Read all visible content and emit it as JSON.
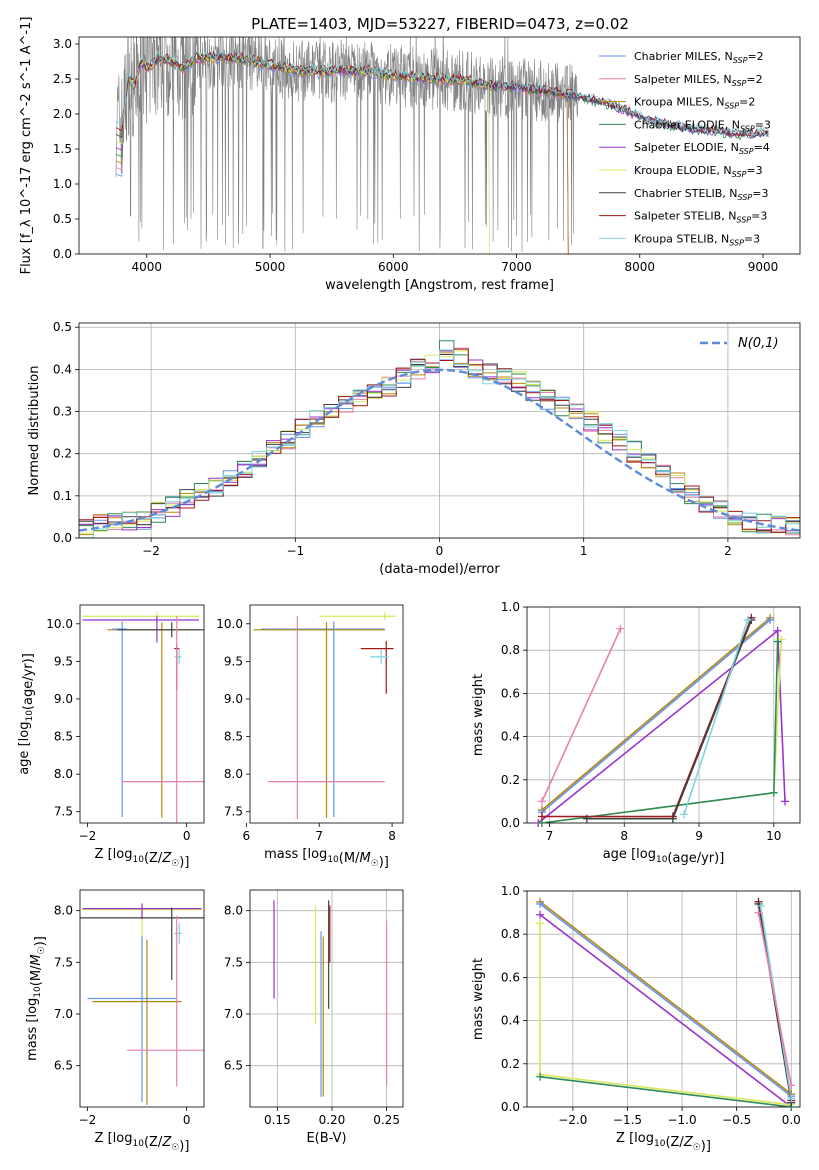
{
  "title": "PLATE=1403, MJD=53227, FIBERID=0473, z=0.02",
  "colors": {
    "chabrier_miles": "#6495ED",
    "salpeter_miles": "#E97FB0",
    "kroupa_miles": "#B8860B",
    "chabrier_elodie": "#2E8B57",
    "salpeter_elodie": "#9932CC",
    "kroupa_elodie": "#D6E85A",
    "chabrier_stelib": "#404040",
    "salpeter_stelib": "#A01818",
    "kroupa_stelib": "#7FD3E0",
    "data": "#808080",
    "fit_orange": "#E07B39",
    "normal_curve": "#5B8BD9"
  },
  "legend": [
    {
      "key": "chabrier_miles",
      "text": "Chabrier MILES, N",
      "sub": "SSP",
      "suffix": "=2"
    },
    {
      "key": "salpeter_miles",
      "text": "Salpeter MILES, N",
      "sub": "SSP",
      "suffix": "=2"
    },
    {
      "key": "kroupa_miles",
      "text": "Kroupa MILES, N",
      "sub": "SSP",
      "suffix": "=2"
    },
    {
      "key": "chabrier_elodie",
      "text": "Chabrier ELODIE, N",
      "sub": "SSP",
      "suffix": "=3"
    },
    {
      "key": "salpeter_elodie",
      "text": "Salpeter ELODIE, N",
      "sub": "SSP",
      "suffix": "=4"
    },
    {
      "key": "kroupa_elodie",
      "text": "Kroupa ELODIE, N",
      "sub": "SSP",
      "suffix": "=3"
    },
    {
      "key": "chabrier_stelib",
      "text": "Chabrier STELIB, N",
      "sub": "SSP",
      "suffix": "=3"
    },
    {
      "key": "salpeter_stelib",
      "text": "Salpeter STELIB, N",
      "sub": "SSP",
      "suffix": "=3"
    },
    {
      "key": "kroupa_stelib",
      "text": "Kroupa STELIB, N",
      "sub": "SSP",
      "suffix": "=3"
    }
  ],
  "chart_data": [
    {
      "id": "spectrum",
      "type": "line",
      "xlabel": "wavelength [Angstrom, rest frame]",
      "ylabel": "Flux [f_λ 10^-17 erg cm^-2 s^-1 A^-1]",
      "xlim": [
        3450,
        9300
      ],
      "ylim": [
        0,
        3.1
      ],
      "xticks": [
        4000,
        5000,
        6000,
        7000,
        8000,
        9000
      ],
      "yticks": [
        0.0,
        0.5,
        1.0,
        1.5,
        2.0,
        2.5,
        3.0
      ],
      "model_continuum": [
        [
          3750,
          1.9
        ],
        [
          3800,
          1.85
        ],
        [
          3850,
          2.5
        ],
        [
          3900,
          2.4
        ],
        [
          3950,
          2.75
        ],
        [
          4000,
          2.65
        ],
        [
          4100,
          2.8
        ],
        [
          4200,
          2.75
        ],
        [
          4300,
          2.65
        ],
        [
          4400,
          2.8
        ],
        [
          4600,
          2.8
        ],
        [
          4800,
          2.78
        ],
        [
          5000,
          2.7
        ],
        [
          5200,
          2.62
        ],
        [
          5400,
          2.6
        ],
        [
          5600,
          2.63
        ],
        [
          5800,
          2.6
        ],
        [
          6000,
          2.55
        ],
        [
          6200,
          2.52
        ],
        [
          6400,
          2.5
        ],
        [
          6600,
          2.47
        ],
        [
          6800,
          2.4
        ],
        [
          7000,
          2.38
        ],
        [
          7200,
          2.33
        ],
        [
          7400,
          2.28
        ],
        [
          7600,
          2.2
        ],
        [
          7800,
          2.1
        ],
        [
          8000,
          1.95
        ],
        [
          8200,
          1.85
        ],
        [
          8400,
          1.78
        ],
        [
          8600,
          1.75
        ],
        [
          8800,
          1.7
        ],
        [
          9000,
          1.72
        ]
      ],
      "series_notes": [
        {
          "key": "kroupa_elodie",
          "x_end": 6780
        },
        {
          "key": "kroupa_miles",
          "x_end": 7420
        },
        {
          "key": "salpeter_miles",
          "x_end": 7420
        },
        {
          "key": "chabrier_miles",
          "x_end": 7420
        }
      ],
      "legend_position": "upper-right"
    },
    {
      "id": "residuals",
      "type": "step",
      "xlabel": "(data-model)/error",
      "ylabel": "Normed distribution",
      "xlim": [
        -2.5,
        2.5
      ],
      "ylim": [
        0,
        0.51
      ],
      "xticks": [
        -2,
        -1,
        0,
        1,
        2
      ],
      "yticks": [
        0.0,
        0.1,
        0.2,
        0.3,
        0.4,
        0.5
      ],
      "bin_width": 0.1,
      "histogram_base": [
        0.025,
        0.035,
        0.04,
        0.04,
        0.045,
        0.06,
        0.075,
        0.09,
        0.11,
        0.12,
        0.14,
        0.165,
        0.19,
        0.215,
        0.235,
        0.26,
        0.28,
        0.3,
        0.315,
        0.33,
        0.345,
        0.36,
        0.38,
        0.4,
        0.41,
        0.445,
        0.43,
        0.4,
        0.39,
        0.38,
        0.37,
        0.35,
        0.33,
        0.31,
        0.295,
        0.275,
        0.25,
        0.23,
        0.205,
        0.18,
        0.16,
        0.13,
        0.1,
        0.085,
        0.07,
        0.055,
        0.04,
        0.035,
        0.03,
        0.025
      ],
      "legend": "N(0,1)",
      "grid": true
    },
    {
      "id": "age_vs_Z",
      "type": "scatter",
      "xlabel": "Z [log10(Z/Z☉)]",
      "ylabel": "age  [log10(age/yr)]",
      "xlim": [
        -2.15,
        0.35
      ],
      "ylim": [
        7.35,
        10.25
      ],
      "xticks": [
        -2,
        0
      ],
      "yticks": [
        7.5,
        8.0,
        8.5,
        9.0,
        9.5,
        10.0
      ],
      "points": [
        {
          "key": "kroupa_elodie",
          "x": -0.6,
          "y": 10.1,
          "xerr": [
            1.5,
            0.85
          ],
          "yerr": [
            0.05,
            0.05
          ]
        },
        {
          "key": "salpeter_elodie",
          "x": -0.6,
          "y": 10.05,
          "xerr": [
            1.5,
            0.85
          ],
          "yerr": [
            0.3,
            0.05
          ]
        },
        {
          "key": "kroupa_miles",
          "x": -0.5,
          "y": 9.92,
          "xerr": [
            1.1,
            0.75
          ],
          "yerr": [
            2.5,
            0.1
          ]
        },
        {
          "key": "chabrier_miles",
          "x": -1.3,
          "y": 9.93,
          "xerr": [
            0.2,
            0.1
          ],
          "yerr": [
            2.5,
            0.1
          ]
        },
        {
          "key": "chabrier_stelib",
          "x": -0.3,
          "y": 9.92,
          "xerr": [
            1.1,
            0.65
          ],
          "yerr": [
            0.1,
            0.1
          ]
        },
        {
          "key": "salpeter_stelib",
          "x": -0.2,
          "y": 9.67,
          "xerr": [
            0.05,
            0.05
          ],
          "yerr": [
            0.55,
            0.05
          ]
        },
        {
          "key": "kroupa_stelib",
          "x": -0.15,
          "y": 9.56,
          "xerr": [
            0.1,
            0.05
          ],
          "yerr": [
            0.1,
            0.1
          ]
        },
        {
          "key": "salpeter_miles",
          "x": -0.2,
          "y": 7.9,
          "xerr": [
            1.1,
            0.8
          ],
          "yerr": [
            1.6,
            2.2
          ]
        }
      ]
    },
    {
      "id": "age_vs_mass",
      "type": "scatter",
      "xlabel": "mass [log10(M/M☉)]",
      "ylabel": "",
      "xlim": [
        6.05,
        8.15
      ],
      "ylim": [
        7.35,
        10.25
      ],
      "xticks": [
        6,
        7,
        8
      ],
      "yticks": [
        7.5,
        8.0,
        8.5,
        9.0,
        9.5,
        10.0
      ],
      "points": [
        {
          "key": "kroupa_elodie",
          "x": 7.9,
          "y": 10.1,
          "xerr": [
            0.9,
            0.15
          ],
          "yerr": [
            0.05,
            0.05
          ]
        },
        {
          "key": "chabrier_miles",
          "x": 7.2,
          "y": 9.93,
          "xerr": [
            1.0,
            0.7
          ],
          "yerr": [
            2.5,
            0.1
          ]
        },
        {
          "key": "kroupa_miles",
          "x": 7.1,
          "y": 9.92,
          "xerr": [
            1.0,
            0.8
          ],
          "yerr": [
            2.5,
            0.1
          ]
        },
        {
          "key": "salpeter_stelib",
          "x": 7.92,
          "y": 9.67,
          "xerr": [
            0.35,
            0.1
          ],
          "yerr": [
            0.6,
            0.1
          ]
        },
        {
          "key": "kroupa_stelib",
          "x": 7.85,
          "y": 9.56,
          "xerr": [
            0.15,
            0.1
          ],
          "yerr": [
            0.1,
            0.1
          ]
        },
        {
          "key": "salpeter_miles",
          "x": 6.7,
          "y": 7.9,
          "xerr": [
            0.4,
            1.2
          ],
          "yerr": [
            0.5,
            2.2
          ]
        }
      ]
    },
    {
      "id": "weight_vs_age",
      "type": "line",
      "xlabel": "age  [log10(age/yr)]",
      "ylabel": "mass weight",
      "xlim": [
        6.7,
        10.35
      ],
      "ylim": [
        0,
        1.0
      ],
      "xticks": [
        7,
        8,
        9,
        10
      ],
      "yticks": [
        0.0,
        0.2,
        0.4,
        0.6,
        0.8,
        1.0
      ],
      "series": [
        {
          "key": "salpeter_miles",
          "points": [
            [
              6.9,
              0.1
            ],
            [
              7.95,
              0.9
            ]
          ]
        },
        {
          "key": "kroupa_miles",
          "points": [
            [
              6.9,
              0.06
            ],
            [
              9.95,
              0.95
            ]
          ]
        },
        {
          "key": "chabrier_miles",
          "points": [
            [
              6.9,
              0.05
            ],
            [
              9.95,
              0.94
            ]
          ]
        },
        {
          "key": "salpeter_elodie",
          "points": [
            [
              6.85,
              0.0
            ],
            [
              10.05,
              0.89
            ],
            [
              10.15,
              0.1
            ]
          ]
        },
        {
          "key": "kroupa_elodie",
          "points": [
            [
              6.9,
              0.0
            ],
            [
              10.0,
              0.14
            ],
            [
              10.1,
              0.85
            ]
          ]
        },
        {
          "key": "chabrier_elodie",
          "points": [
            [
              6.9,
              0.0
            ],
            [
              10.0,
              0.14
            ],
            [
              10.05,
              0.84
            ]
          ]
        },
        {
          "key": "salpeter_stelib",
          "points": [
            [
              6.9,
              0.03
            ],
            [
              8.65,
              0.03
            ],
            [
              9.7,
              0.95
            ]
          ]
        },
        {
          "key": "chabrier_stelib",
          "points": [
            [
              7.5,
              0.02
            ],
            [
              8.65,
              0.02
            ],
            [
              9.7,
              0.94
            ]
          ]
        },
        {
          "key": "kroupa_stelib",
          "points": [
            [
              8.8,
              0.04
            ],
            [
              9.65,
              0.94
            ]
          ]
        }
      ],
      "grid": true
    },
    {
      "id": "mass_vs_Z",
      "type": "scatter",
      "xlabel": "Z [log10(Z/Z☉)]",
      "ylabel": "mass [log10(M/M☉)]",
      "xlim": [
        -2.15,
        0.35
      ],
      "ylim": [
        6.1,
        8.2
      ],
      "xticks": [
        -2,
        0
      ],
      "yticks": [
        6.5,
        7.0,
        7.5,
        8.0
      ],
      "points": [
        {
          "key": "kroupa_elodie",
          "x": -0.9,
          "y": 8.01,
          "xerr": [
            1.2,
            1.2
          ],
          "yerr": [
            1.05,
            0.03
          ]
        },
        {
          "key": "salpeter_elodie",
          "x": -0.9,
          "y": 8.02,
          "xerr": [
            1.2,
            1.2
          ],
          "yerr": [
            0.1,
            0.05
          ]
        },
        {
          "key": "chabrier_stelib",
          "x": -0.3,
          "y": 7.93,
          "xerr": [
            1.9,
            0.7
          ],
          "yerr": [
            0.6,
            0.1
          ]
        },
        {
          "key": "chabrier_miles",
          "x": -0.9,
          "y": 7.15,
          "xerr": [
            1.1,
            0.7
          ],
          "yerr": [
            1.0,
            0.6
          ]
        },
        {
          "key": "kroupa_miles",
          "x": -0.8,
          "y": 7.12,
          "xerr": [
            1.1,
            0.7
          ],
          "yerr": [
            1.0,
            0.6
          ]
        },
        {
          "key": "kroupa_stelib",
          "x": -0.15,
          "y": 7.78,
          "xerr": [
            0.1,
            0.05
          ],
          "yerr": [
            0.1,
            0.1
          ]
        },
        {
          "key": "salpeter_miles",
          "x": -0.2,
          "y": 6.65,
          "xerr": [
            1.0,
            1.0
          ],
          "yerr": [
            0.35,
            1.3
          ]
        }
      ]
    },
    {
      "id": "mass_vs_ebv",
      "type": "scatter",
      "xlabel": "E(B-V)",
      "ylabel": "",
      "xlim": [
        0.125,
        0.265
      ],
      "ylim": [
        6.1,
        8.2
      ],
      "xticks": [
        0.15,
        0.2,
        0.25
      ],
      "yticks": [
        6.5,
        7.0,
        7.5,
        8.0
      ],
      "vlines": [
        {
          "key": "salpeter_elodie",
          "x": 0.147,
          "y": [
            7.15,
            8.1
          ]
        },
        {
          "key": "kroupa_elodie",
          "x": 0.185,
          "y": [
            6.9,
            8.05
          ]
        },
        {
          "key": "chabrier_miles",
          "x": 0.19,
          "y": [
            6.2,
            7.8
          ]
        },
        {
          "key": "kroupa_miles",
          "x": 0.192,
          "y": [
            6.2,
            7.75
          ]
        },
        {
          "key": "chabrier_stelib",
          "x": 0.197,
          "y": [
            7.05,
            8.1
          ]
        },
        {
          "key": "salpeter_stelib",
          "x": 0.198,
          "y": [
            7.5,
            8.05
          ]
        },
        {
          "key": "salpeter_miles",
          "x": 0.25,
          "y": [
            6.3,
            7.9
          ]
        }
      ],
      "grid": true
    },
    {
      "id": "weight_vs_Z",
      "type": "line",
      "xlabel": "Z [log10(Z/Z☉)]",
      "ylabel": "mass weight",
      "xlim": [
        -2.42,
        0.08
      ],
      "ylim": [
        0,
        1.0
      ],
      "xticks": [
        -2.0,
        -1.5,
        -1.0,
        -0.5,
        0.0
      ],
      "yticks": [
        0.0,
        0.2,
        0.4,
        0.6,
        0.8,
        1.0
      ],
      "series": [
        {
          "key": "kroupa_miles",
          "points": [
            [
              -2.3,
              0.95
            ],
            [
              0.0,
              0.06
            ]
          ]
        },
        {
          "key": "chabrier_miles",
          "points": [
            [
              -2.3,
              0.94
            ],
            [
              0.0,
              0.05
            ]
          ]
        },
        {
          "key": "salpeter_elodie",
          "points": [
            [
              -2.3,
              0.89
            ],
            [
              0.0,
              0.0
            ]
          ]
        },
        {
          "key": "kroupa_elodie",
          "points": [
            [
              -2.3,
              0.85
            ],
            [
              -2.3,
              0.15
            ],
            [
              0.0,
              0.01
            ]
          ]
        },
        {
          "key": "chabrier_elodie",
          "points": [
            [
              -2.3,
              0.14
            ],
            [
              0.0,
              0.0
            ]
          ]
        },
        {
          "key": "salpeter_stelib",
          "points": [
            [
              -0.3,
              0.95
            ],
            [
              0.0,
              0.03
            ]
          ]
        },
        {
          "key": "chabrier_stelib",
          "points": [
            [
              -0.3,
              0.94
            ],
            [
              0.0,
              0.02
            ]
          ]
        },
        {
          "key": "kroupa_stelib",
          "points": [
            [
              -0.28,
              0.93
            ],
            [
              0.0,
              0.04
            ]
          ]
        },
        {
          "key": "salpeter_miles",
          "points": [
            [
              -0.3,
              0.9
            ],
            [
              0.0,
              0.1
            ]
          ]
        }
      ],
      "grid": true
    }
  ]
}
